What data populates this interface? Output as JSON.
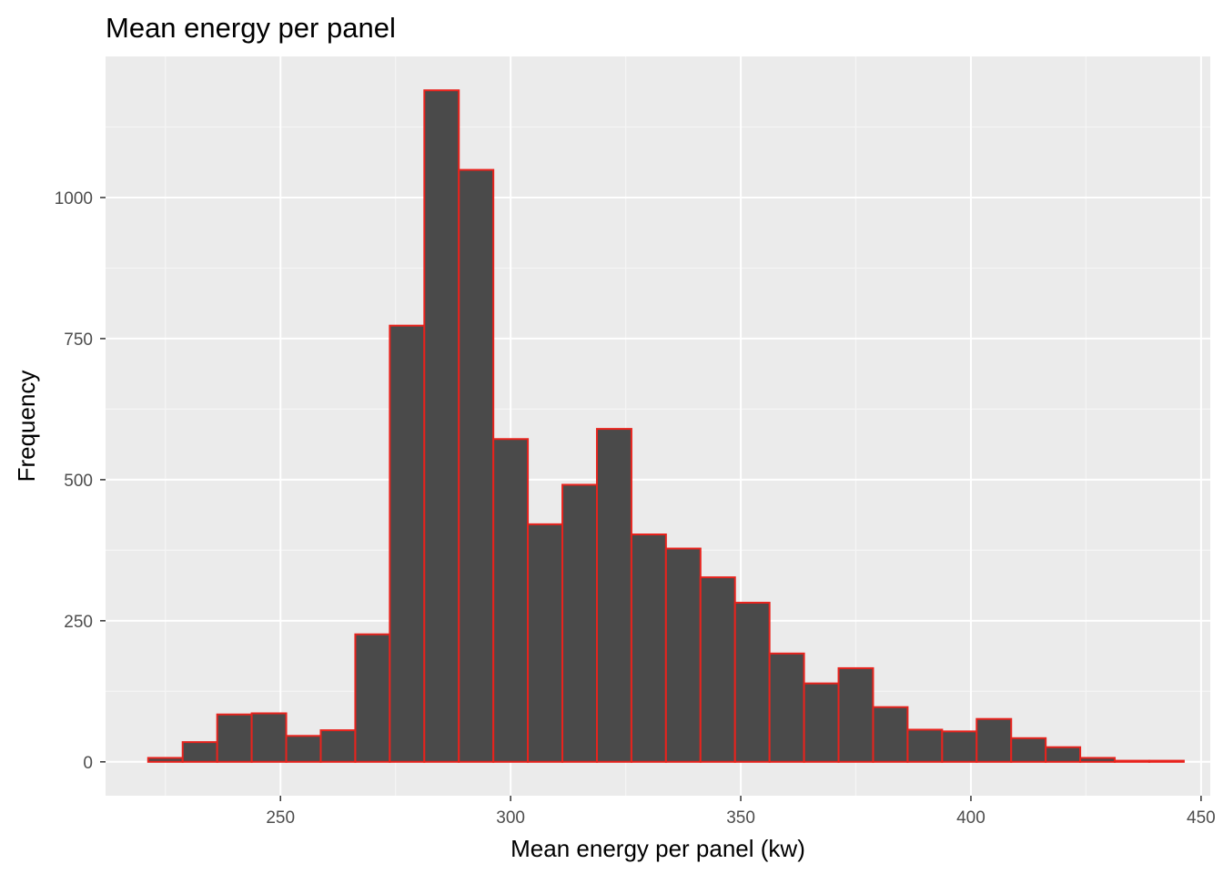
{
  "chart_data": {
    "type": "bar",
    "title": "Mean energy per panel",
    "xlabel": "Mean energy per panel (kw)",
    "ylabel": "Frequency",
    "xlim": [
      212,
      452
    ],
    "ylim": [
      -60,
      1250
    ],
    "x_ticks": [
      250,
      300,
      350,
      400,
      450
    ],
    "y_ticks": [
      0,
      250,
      500,
      750,
      1000
    ],
    "grid": true,
    "bin_width": 7.5,
    "bins": [
      {
        "x0": 221.25,
        "x1": 228.75,
        "value": 7
      },
      {
        "x0": 228.75,
        "x1": 236.25,
        "value": 35
      },
      {
        "x0": 236.25,
        "x1": 243.75,
        "value": 84
      },
      {
        "x0": 243.75,
        "x1": 251.25,
        "value": 86
      },
      {
        "x0": 251.25,
        "x1": 258.75,
        "value": 46
      },
      {
        "x0": 258.75,
        "x1": 266.25,
        "value": 56
      },
      {
        "x0": 266.25,
        "x1": 273.75,
        "value": 226
      },
      {
        "x0": 273.75,
        "x1": 281.25,
        "value": 773
      },
      {
        "x0": 281.25,
        "x1": 288.75,
        "value": 1190
      },
      {
        "x0": 288.75,
        "x1": 296.25,
        "value": 1049
      },
      {
        "x0": 296.25,
        "x1": 303.75,
        "value": 572
      },
      {
        "x0": 303.75,
        "x1": 311.25,
        "value": 421
      },
      {
        "x0": 311.25,
        "x1": 318.75,
        "value": 491
      },
      {
        "x0": 318.75,
        "x1": 326.25,
        "value": 590
      },
      {
        "x0": 326.25,
        "x1": 333.75,
        "value": 403
      },
      {
        "x0": 333.75,
        "x1": 341.25,
        "value": 378
      },
      {
        "x0": 341.25,
        "x1": 348.75,
        "value": 327
      },
      {
        "x0": 348.75,
        "x1": 356.25,
        "value": 282
      },
      {
        "x0": 356.25,
        "x1": 363.75,
        "value": 192
      },
      {
        "x0": 363.75,
        "x1": 371.25,
        "value": 139
      },
      {
        "x0": 371.25,
        "x1": 378.75,
        "value": 166
      },
      {
        "x0": 378.75,
        "x1": 386.25,
        "value": 97
      },
      {
        "x0": 386.25,
        "x1": 393.75,
        "value": 57
      },
      {
        "x0": 393.75,
        "x1": 401.25,
        "value": 54
      },
      {
        "x0": 401.25,
        "x1": 408.75,
        "value": 76
      },
      {
        "x0": 408.75,
        "x1": 416.25,
        "value": 42
      },
      {
        "x0": 416.25,
        "x1": 423.75,
        "value": 26
      },
      {
        "x0": 423.75,
        "x1": 431.25,
        "value": 7
      },
      {
        "x0": 431.25,
        "x1": 438.75,
        "value": 2
      },
      {
        "x0": 438.75,
        "x1": 446.25,
        "value": 2
      }
    ],
    "colors": {
      "bar_fill": "#4a4a4a",
      "bar_outline": "#e8231d",
      "panel_background": "#ebebeb",
      "grid_major": "#ffffff",
      "grid_minor": "#f5f5f5"
    }
  }
}
